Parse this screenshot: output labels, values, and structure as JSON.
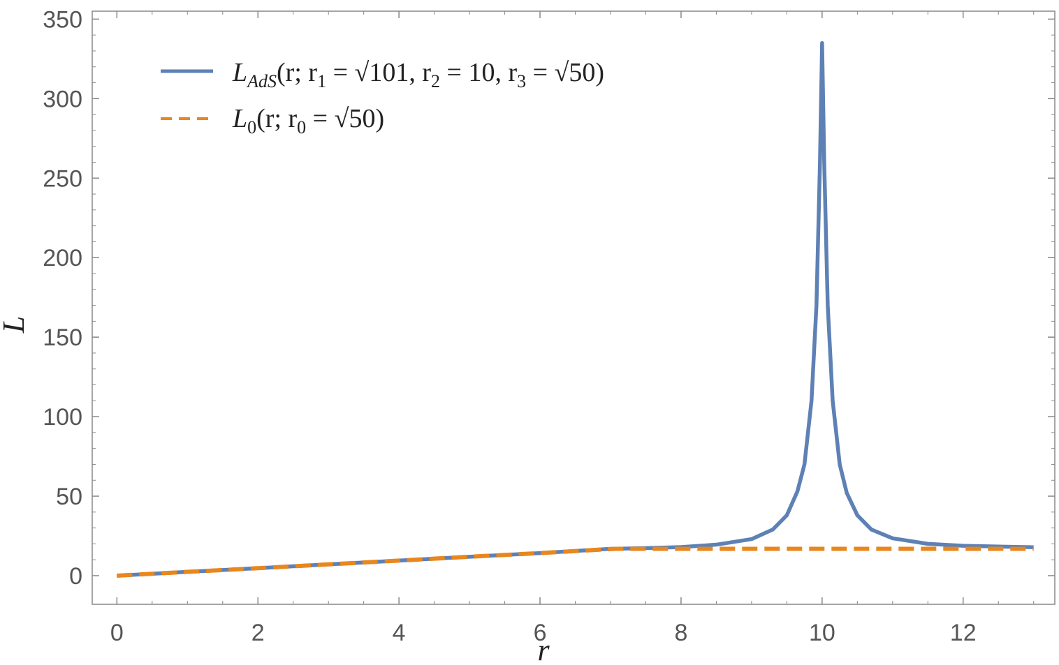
{
  "chart_data": {
    "type": "line",
    "title": "",
    "xlabel": "r",
    "ylabel": "L",
    "xlim": [
      -0.35,
      13.3
    ],
    "ylim": [
      -18,
      355
    ],
    "xticks": [
      0,
      2,
      4,
      6,
      8,
      10,
      12
    ],
    "yticks": [
      0,
      50,
      100,
      150,
      200,
      250,
      300,
      350
    ],
    "xtick_labels": [
      "0",
      "2",
      "4",
      "6",
      "8",
      "10",
      "12"
    ],
    "ytick_labels": [
      "0",
      "50",
      "100",
      "150",
      "200",
      "250",
      "300",
      "350"
    ],
    "grid": false,
    "legend_position": "top-left",
    "legend": {
      "ads_name": "L",
      "ads_sub": "AdS",
      "ads_args_1": "(r; r",
      "ads_args_1_sub": "1",
      "ads_args_2": " = √101, r",
      "ads_args_2_sub": "2",
      "ads_args_3": " = 10, r",
      "ads_args_3_sub": "3",
      "ads_args_4": " = √50)",
      "zero_name": "L",
      "zero_sub": "0",
      "zero_args_1": "(r; r",
      "zero_args_1_sub": "0",
      "zero_args_2": " = √50)"
    },
    "series": [
      {
        "color": "#5e81b5",
        "dash": "solid",
        "x": [
          0,
          1,
          2,
          3,
          4,
          5,
          6,
          7,
          7.5,
          8,
          8.5,
          9,
          9.3,
          9.5,
          9.65,
          9.75,
          9.85,
          9.92,
          9.97,
          10.0,
          10.03,
          10.08,
          10.15,
          10.25,
          10.35,
          10.5,
          10.7,
          11,
          11.5,
          12,
          12.5,
          13
        ],
        "y": [
          0,
          2.4,
          4.7,
          7.1,
          9.5,
          11.9,
          14.2,
          16.9,
          17.3,
          18.0,
          19.5,
          23.0,
          29.0,
          38.0,
          53.0,
          70.0,
          110.0,
          170.0,
          260.0,
          335.0,
          260.0,
          170.0,
          110.0,
          70.0,
          52.0,
          38.0,
          29.0,
          23.5,
          20.0,
          18.8,
          18.3,
          17.9
        ]
      },
      {
        "color": "#e8871e",
        "dash": "dashed",
        "x": [
          0,
          1,
          2,
          3,
          4,
          5,
          6,
          7.07,
          8,
          9,
          10,
          11,
          12,
          13
        ],
        "y": [
          0,
          2.4,
          4.7,
          7.1,
          9.5,
          11.9,
          14.2,
          16.9,
          16.9,
          16.9,
          16.9,
          16.9,
          16.9,
          16.9
        ]
      }
    ]
  }
}
